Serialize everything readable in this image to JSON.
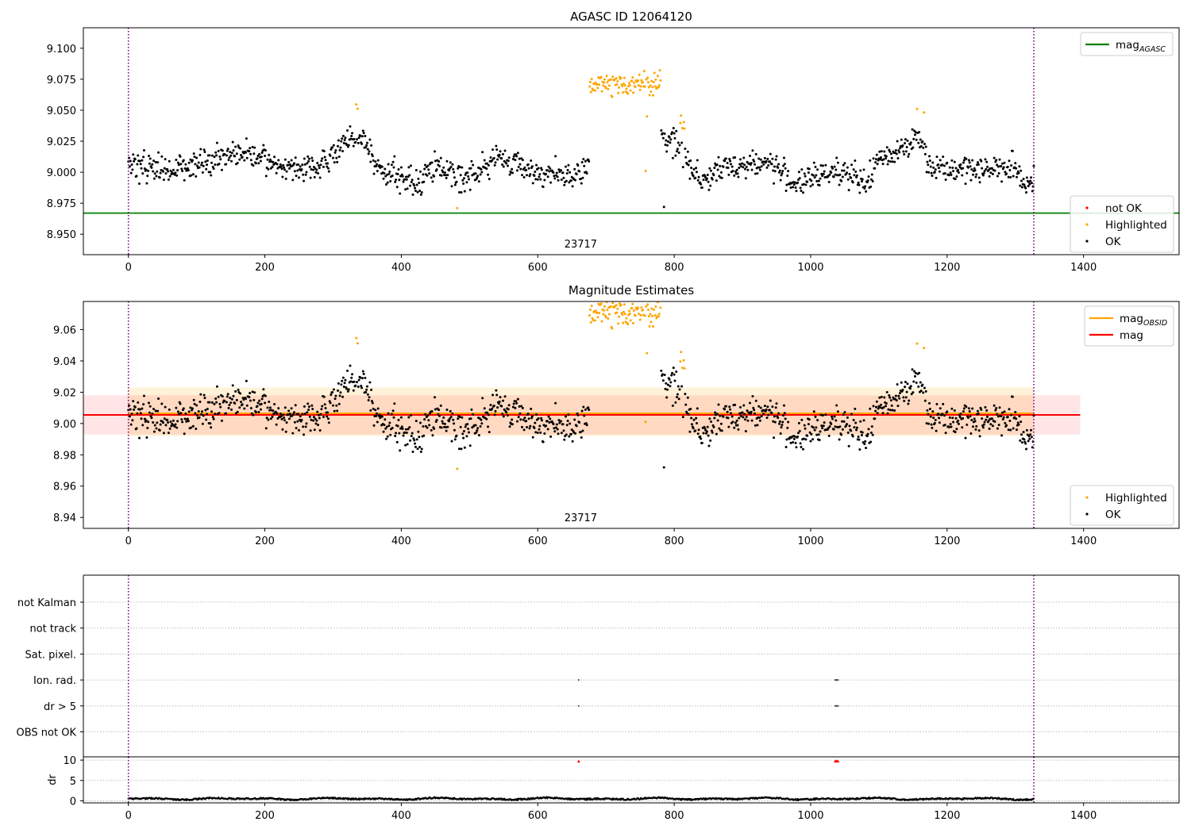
{
  "chart_data": [
    {
      "type": "scatter",
      "title": "AGASC ID 12064120",
      "xlim": [
        -66,
        1540
      ],
      "ylim": [
        8.9335,
        9.1165
      ],
      "xticks": [
        0,
        200,
        400,
        600,
        800,
        1000,
        1200,
        1400
      ],
      "yticks": [
        8.95,
        8.975,
        9.0,
        9.025,
        9.05,
        9.075,
        9.1
      ],
      "ytick_labels": [
        "8.950",
        "8.975",
        "9.000",
        "9.025",
        "9.050",
        "9.075",
        "9.100"
      ],
      "obsid_label": "23717",
      "obsid_x": 663,
      "obs_boundaries": [
        0,
        1327
      ],
      "lines": [
        {
          "name": "mag",
          "sub": "AGASC",
          "y": 8.967,
          "color": "#008000"
        }
      ],
      "legend_top": [
        {
          "text": "mag",
          "sub": "AGASC",
          "color": "#008000",
          "kind": "line"
        }
      ],
      "legend_bottom": [
        {
          "text": "not OK",
          "color": "#ff0000",
          "kind": "dot"
        },
        {
          "text": "Highlighted",
          "color": "#ffa500",
          "kind": "dot"
        },
        {
          "text": "OK",
          "color": "#000000",
          "kind": "dot"
        }
      ]
    },
    {
      "type": "scatter",
      "title": "Magnitude Estimates",
      "xlim": [
        -66,
        1540
      ],
      "ylim": [
        8.933,
        9.078
      ],
      "xticks": [
        0,
        200,
        400,
        600,
        800,
        1000,
        1200,
        1400
      ],
      "yticks": [
        8.94,
        8.96,
        8.98,
        9.0,
        9.02,
        9.04,
        9.06
      ],
      "ytick_labels": [
        "8.94",
        "8.96",
        "8.98",
        "9.00",
        "9.02",
        "9.04",
        "9.06"
      ],
      "obsid_label": "23717",
      "obsid_x": 663,
      "obs_boundaries": [
        0,
        1327
      ],
      "bands": [
        {
          "name": "mag_OBSID range",
          "x": [
            0,
            1327
          ],
          "y": [
            8.992,
            9.023
          ],
          "color": "#ffa500",
          "opacity": 0.15
        },
        {
          "name": "mag range",
          "x": [
            -66,
            1395
          ],
          "y": [
            8.993,
            9.018
          ],
          "color": "#ff0000",
          "opacity": 0.1
        }
      ],
      "lines": [
        {
          "name": "mag",
          "sub": "OBSID",
          "y": 9.0065,
          "x": [
            0,
            1327
          ],
          "color": "#ffa500"
        },
        {
          "name": "mag",
          "y": 9.0055,
          "x": [
            -66,
            1395
          ],
          "color": "#ff0000"
        }
      ],
      "legend_top": [
        {
          "text": "mag",
          "sub": "OBSID",
          "color": "#ffa500",
          "kind": "line"
        },
        {
          "text": "mag",
          "color": "#ff0000",
          "kind": "line"
        }
      ],
      "legend_bottom": [
        {
          "text": "Highlighted",
          "color": "#ffa500",
          "kind": "dot"
        },
        {
          "text": "OK",
          "color": "#000000",
          "kind": "dot"
        }
      ]
    },
    {
      "type": "scatter",
      "xlim": [
        -66,
        1540
      ],
      "obs_boundaries": [
        0,
        1327
      ],
      "flags": [
        "not Kalman",
        "not track",
        "Sat. pixel.",
        "Ion. rad.",
        "dr > 5",
        "OBS not OK"
      ],
      "flag_points": [
        {
          "flag": "Ion. rad.",
          "x": [
            660,
            1036,
            1037,
            1038,
            1039,
            1040
          ]
        },
        {
          "flag": "dr > 5",
          "x": [
            660,
            1036,
            1037,
            1038,
            1039,
            1040
          ]
        }
      ]
    },
    {
      "type": "line",
      "xlim": [
        -66,
        1540
      ],
      "ylim": [
        -0.5,
        10.8
      ],
      "ylabel": "dr",
      "yticks": [
        0,
        5,
        10
      ],
      "xticks": [
        0,
        200,
        400,
        600,
        800,
        1000,
        1200,
        1400
      ],
      "obs_boundaries": [
        0,
        1327
      ],
      "outliers": [
        {
          "x": 660,
          "y": 9.7
        },
        {
          "x": 1036,
          "y": 9.7
        },
        {
          "x": 1038,
          "y": 9.8
        },
        {
          "x": 1040,
          "y": 9.7
        }
      ]
    }
  ],
  "colors": {
    "ok": "#000000",
    "highlighted": "#ffa500",
    "not_ok": "#ff0000",
    "boundary": "#800080"
  }
}
